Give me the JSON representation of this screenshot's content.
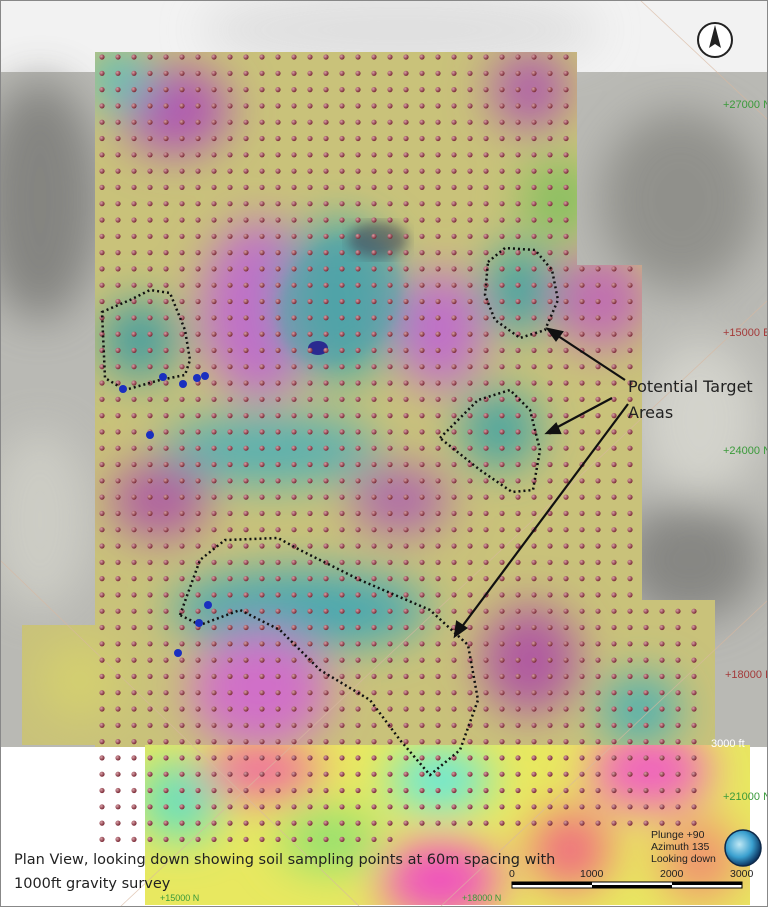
{
  "map": {
    "caption_line1": "Plan View, looking down showing soil sampling points at 60m spacing with",
    "caption_line2": "1000ft gravity survey",
    "annotation_line1": "Potential Target",
    "annotation_line2": "Areas",
    "view_info": {
      "plunge": "Plunge +90",
      "azimuth": "Azimuth 135",
      "looking": "Looking down"
    },
    "north_arrow_label": "N",
    "grid_labels": {
      "n27000": "+27000 N",
      "e15000": "+15000 E",
      "n24000": "+24000 N",
      "e18000": "+18000 E",
      "ft3000": "3000 ft",
      "n21000": "+21000 N",
      "bottom_left": "+15000 N",
      "bottom_right": "+18000 N"
    },
    "scale_bar": {
      "ticks": [
        "0",
        "1000",
        "2000",
        "3000"
      ],
      "unit": "ft"
    },
    "colors": {
      "sample_point": "#8a3a44",
      "drill_hole": "#1a2fbf",
      "north_grid_label": "#3a9a3a",
      "east_grid_label": "#a33a3a",
      "target_outline": "#111111"
    },
    "icons": [
      "north-arrow-icon",
      "view-orientation-sphere-icon"
    ]
  }
}
